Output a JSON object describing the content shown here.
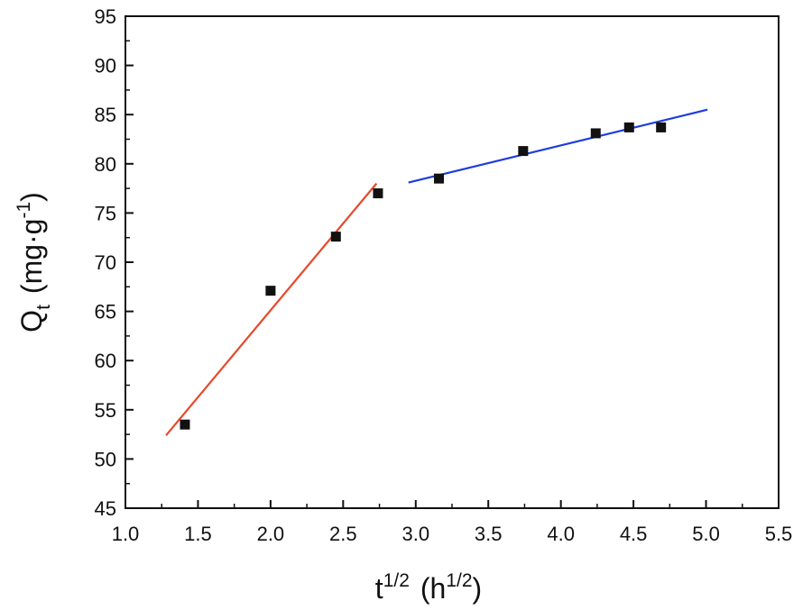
{
  "chart_data": {
    "type": "scatter",
    "title": "",
    "xlabel": {
      "base": "t",
      "sup": "1/2",
      "unit_open": "(h",
      "unit_sup": "1/2",
      "unit_close": ")"
    },
    "ylabel": {
      "base": "Q",
      "sub": "t",
      "unit_open": "(mg·g",
      "unit_sup": "-1",
      "unit_close": ")"
    },
    "xlim": [
      1.0,
      5.5
    ],
    "ylim": [
      45,
      95
    ],
    "xticks": [
      "1.0",
      "1.5",
      "2.0",
      "2.5",
      "3.0",
      "3.5",
      "4.0",
      "4.5",
      "5.0",
      "5.5"
    ],
    "yticks": [
      "45",
      "50",
      "55",
      "60",
      "65",
      "70",
      "75",
      "80",
      "85",
      "90",
      "95"
    ],
    "grid": false,
    "series": [
      {
        "marker": "square",
        "color": "#111111",
        "points": [
          {
            "x": 1.41,
            "y": 53.5
          },
          {
            "x": 2.0,
            "y": 67.1
          },
          {
            "x": 2.45,
            "y": 72.6
          },
          {
            "x": 2.74,
            "y": 77.0
          },
          {
            "x": 3.16,
            "y": 78.5
          },
          {
            "x": 3.74,
            "y": 81.3
          },
          {
            "x": 4.24,
            "y": 83.1
          },
          {
            "x": 4.47,
            "y": 83.7
          },
          {
            "x": 4.69,
            "y": 83.7
          }
        ]
      }
    ],
    "fit_lines": [
      {
        "color": "#e8472a",
        "x": [
          1.28,
          2.73
        ],
        "y": [
          52.4,
          78.0
        ]
      },
      {
        "color": "#1f3ddb",
        "x": [
          2.95,
          5.01
        ],
        "y": [
          78.1,
          85.5
        ]
      }
    ]
  }
}
